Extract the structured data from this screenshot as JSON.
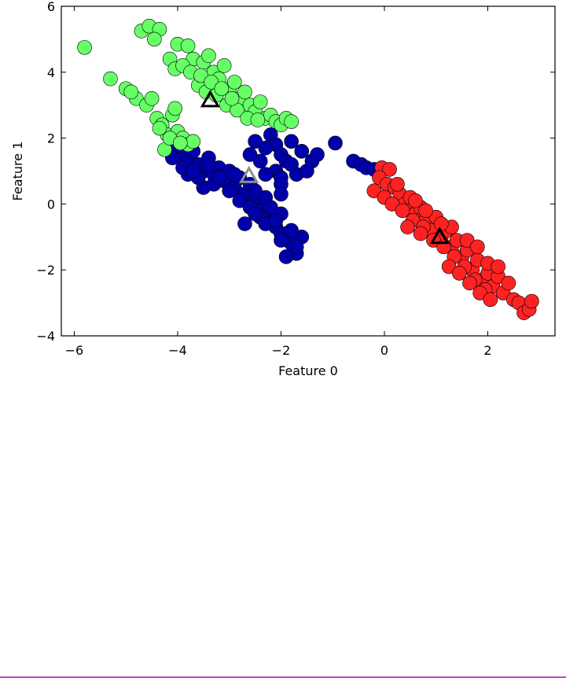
{
  "chart_data": {
    "type": "scatter",
    "title": "",
    "xlabel": "Feature 0",
    "ylabel": "Feature 1",
    "xlim": [
      -6.25,
      3.3
    ],
    "ylim": [
      -4,
      6
    ],
    "xticks": [
      -6,
      -4,
      -2,
      0,
      2
    ],
    "yticks": [
      -4,
      -2,
      0,
      2,
      4,
      6
    ],
    "xtick_labels": [
      "−6",
      "−4",
      "−2",
      "0",
      "2"
    ],
    "ytick_labels": [
      "−4",
      "−2",
      "0",
      "2",
      "4",
      "6"
    ],
    "grid": false,
    "legend": "none",
    "series": [
      {
        "color": "#0000aa",
        "marker": "circle",
        "points": [
          [
            -4.0,
            1.7
          ],
          [
            -3.9,
            1.5
          ],
          [
            -3.8,
            1.3
          ],
          [
            -3.7,
            1.6
          ],
          [
            -3.6,
            1.2
          ],
          [
            -3.5,
            1.0
          ],
          [
            -3.4,
            1.4
          ],
          [
            -3.3,
            0.9
          ],
          [
            -3.2,
            1.1
          ],
          [
            -3.1,
            0.7
          ],
          [
            -3.0,
            1.0
          ],
          [
            -2.9,
            0.5
          ],
          [
            -2.8,
            0.8
          ],
          [
            -2.7,
            0.3
          ],
          [
            -2.6,
            0.6
          ],
          [
            -2.5,
            0.1
          ],
          [
            -2.4,
            -0.2
          ],
          [
            -2.3,
            0.2
          ],
          [
            -2.2,
            -0.4
          ],
          [
            -2.1,
            -0.7
          ],
          [
            -2.0,
            -0.3
          ],
          [
            -1.9,
            -0.9
          ],
          [
            -1.8,
            -1.2
          ],
          [
            -1.7,
            -1.5
          ],
          [
            -1.6,
            -1.0
          ],
          [
            -3.8,
            0.9
          ],
          [
            -3.5,
            0.5
          ],
          [
            -3.3,
            0.6
          ],
          [
            -3.0,
            0.4
          ],
          [
            -2.8,
            0.1
          ],
          [
            -2.6,
            -0.1
          ],
          [
            -2.4,
            -0.4
          ],
          [
            -2.3,
            -0.6
          ],
          [
            -2.1,
            -0.5
          ],
          [
            -2.0,
            -0.9
          ],
          [
            -1.8,
            -0.8
          ],
          [
            -1.7,
            -1.3
          ],
          [
            -1.9,
            -1.6
          ],
          [
            -2.2,
            -0.1
          ],
          [
            -2.5,
            0.4
          ],
          [
            -3.2,
            0.8
          ],
          [
            -3.6,
            0.8
          ],
          [
            -3.9,
            1.1
          ],
          [
            -4.1,
            1.4
          ],
          [
            -3.4,
            1.2
          ],
          [
            -3.7,
            1.0
          ],
          [
            -2.9,
            0.9
          ],
          [
            -2.7,
            -0.6
          ],
          [
            -2.5,
            -0.3
          ],
          [
            -2.0,
            -1.1
          ],
          [
            -2.2,
            2.1
          ],
          [
            -2.1,
            1.8
          ],
          [
            -2.0,
            1.5
          ],
          [
            -1.9,
            1.3
          ],
          [
            -1.8,
            1.2
          ],
          [
            -1.7,
            0.9
          ],
          [
            -2.3,
            1.7
          ],
          [
            -2.4,
            1.3
          ],
          [
            -2.6,
            1.5
          ],
          [
            -1.5,
            1.0
          ],
          [
            -1.4,
            1.3
          ],
          [
            -1.6,
            1.6
          ],
          [
            -2.1,
            1.0
          ],
          [
            -2.0,
            0.8
          ],
          [
            -2.0,
            0.6
          ],
          [
            -2.0,
            0.3
          ],
          [
            -2.3,
            0.9
          ],
          [
            -1.3,
            1.5
          ],
          [
            -1.8,
            1.9
          ],
          [
            -2.5,
            1.9
          ],
          [
            -0.95,
            1.85
          ],
          [
            -0.6,
            1.3
          ],
          [
            -0.45,
            1.2
          ],
          [
            -0.35,
            1.1
          ],
          [
            -0.2,
            1.05
          ]
        ]
      },
      {
        "color": "#66ff66",
        "marker": "circle",
        "points": [
          [
            -5.8,
            4.75
          ],
          [
            -5.3,
            3.8
          ],
          [
            -5.0,
            3.5
          ],
          [
            -4.8,
            3.2
          ],
          [
            -4.9,
            3.4
          ],
          [
            -4.6,
            3.0
          ],
          [
            -4.5,
            3.2
          ],
          [
            -4.4,
            2.6
          ],
          [
            -4.3,
            2.4
          ],
          [
            -4.2,
            2.1
          ],
          [
            -4.1,
            2.7
          ],
          [
            -4.0,
            2.2
          ],
          [
            -3.9,
            2.0
          ],
          [
            -3.8,
            1.8
          ],
          [
            -4.25,
            1.65
          ],
          [
            -3.7,
            1.9
          ],
          [
            -4.05,
            2.9
          ],
          [
            -4.35,
            2.3
          ],
          [
            -4.15,
            2.0
          ],
          [
            -3.95,
            1.85
          ],
          [
            -4.7,
            5.25
          ],
          [
            -4.55,
            5.4
          ],
          [
            -4.35,
            5.3
          ],
          [
            -4.45,
            5.0
          ],
          [
            -4.0,
            4.85
          ],
          [
            -3.8,
            4.8
          ],
          [
            -3.7,
            4.4
          ],
          [
            -3.5,
            4.3
          ],
          [
            -3.4,
            4.5
          ],
          [
            -3.3,
            4.0
          ],
          [
            -3.2,
            3.8
          ],
          [
            -3.1,
            4.2
          ],
          [
            -3.0,
            3.5
          ],
          [
            -2.9,
            3.7
          ],
          [
            -2.8,
            3.2
          ],
          [
            -2.7,
            3.4
          ],
          [
            -2.6,
            3.0
          ],
          [
            -2.5,
            2.8
          ],
          [
            -2.4,
            3.1
          ],
          [
            -2.3,
            2.6
          ],
          [
            -2.2,
            2.7
          ],
          [
            -2.1,
            2.5
          ],
          [
            -2.0,
            2.4
          ],
          [
            -1.9,
            2.6
          ],
          [
            -1.8,
            2.5
          ],
          [
            -4.15,
            4.4
          ],
          [
            -4.05,
            4.1
          ],
          [
            -3.9,
            4.2
          ],
          [
            -3.6,
            3.6
          ],
          [
            -3.45,
            3.4
          ],
          [
            -3.25,
            3.3
          ],
          [
            -3.05,
            3.0
          ],
          [
            -2.85,
            2.85
          ],
          [
            -2.65,
            2.6
          ],
          [
            -2.45,
            2.55
          ],
          [
            -3.75,
            4.0
          ],
          [
            -3.55,
            3.9
          ],
          [
            -3.35,
            3.7
          ],
          [
            -3.15,
            3.5
          ],
          [
            -2.95,
            3.2
          ]
        ]
      },
      {
        "color": "#ff2222",
        "marker": "circle",
        "points": [
          [
            -0.05,
            1.1
          ],
          [
            0.1,
            1.05
          ],
          [
            -0.1,
            0.8
          ],
          [
            0.05,
            0.6
          ],
          [
            0.2,
            0.5
          ],
          [
            -0.2,
            0.4
          ],
          [
            0.0,
            0.2
          ],
          [
            0.3,
            0.3
          ],
          [
            0.4,
            0.0
          ],
          [
            0.5,
            0.2
          ],
          [
            0.6,
            -0.3
          ],
          [
            0.7,
            -0.1
          ],
          [
            0.8,
            -0.5
          ],
          [
            0.9,
            -0.8
          ],
          [
            1.0,
            -0.4
          ],
          [
            1.1,
            -1.0
          ],
          [
            1.2,
            -0.8
          ],
          [
            1.3,
            -1.3
          ],
          [
            1.4,
            -1.1
          ],
          [
            1.5,
            -1.6
          ],
          [
            1.6,
            -1.4
          ],
          [
            1.7,
            -2.0
          ],
          [
            1.8,
            -1.7
          ],
          [
            1.9,
            -2.3
          ],
          [
            2.0,
            -2.1
          ],
          [
            2.1,
            -2.5
          ],
          [
            2.2,
            -2.2
          ],
          [
            2.3,
            -2.7
          ],
          [
            2.4,
            -2.4
          ],
          [
            2.5,
            -2.9
          ],
          [
            2.6,
            -3.0
          ],
          [
            2.7,
            -3.3
          ],
          [
            2.8,
            -3.2
          ],
          [
            2.85,
            -2.95
          ],
          [
            0.15,
            0.0
          ],
          [
            0.35,
            -0.2
          ],
          [
            0.55,
            -0.5
          ],
          [
            0.75,
            -0.7
          ],
          [
            0.95,
            -1.1
          ],
          [
            1.15,
            -1.3
          ],
          [
            1.35,
            -1.6
          ],
          [
            1.55,
            -1.9
          ],
          [
            1.75,
            -2.3
          ],
          [
            1.95,
            -2.6
          ],
          [
            1.3,
            -0.7
          ],
          [
            1.1,
            -0.6
          ],
          [
            0.8,
            -0.2
          ],
          [
            0.6,
            0.1
          ],
          [
            0.25,
            0.6
          ],
          [
            1.25,
            -1.9
          ],
          [
            1.45,
            -2.1
          ],
          [
            1.65,
            -2.4
          ],
          [
            1.85,
            -2.7
          ],
          [
            2.05,
            -2.9
          ],
          [
            1.6,
            -1.1
          ],
          [
            1.8,
            -1.3
          ],
          [
            2.0,
            -1.8
          ],
          [
            2.2,
            -1.9
          ],
          [
            0.45,
            -0.7
          ],
          [
            0.7,
            -0.9
          ]
        ]
      }
    ],
    "centroids": [
      {
        "x": -3.37,
        "y": 3.15,
        "color": "#000000",
        "marker": "triangle-outline"
      },
      {
        "x": -2.62,
        "y": 0.85,
        "color": "#909090",
        "marker": "triangle-outline"
      },
      {
        "x": 1.07,
        "y": -1.0,
        "color": "#000000",
        "marker": "triangle-outline"
      }
    ]
  },
  "page": {
    "bottom_rule_color": "#cc44cc"
  }
}
